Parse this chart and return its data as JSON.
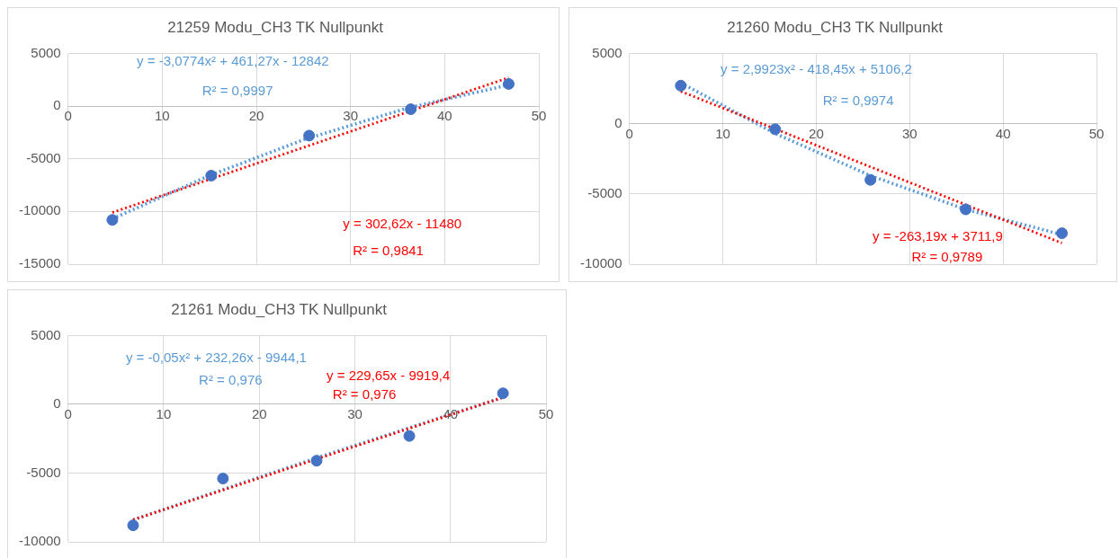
{
  "chart_data": [
    {
      "type": "scatter",
      "title": "21259 Modu_CH3 TK Nullpunkt",
      "xlim": [
        0,
        50
      ],
      "xticks": [
        0,
        10,
        20,
        30,
        40,
        50
      ],
      "ylim": [
        -15000,
        5000
      ],
      "yticks": [
        -15000,
        -10000,
        -5000,
        0,
        5000
      ],
      "grid": true,
      "legend": false,
      "series": [
        {
          "type": "scatter",
          "color": "#4472c4",
          "marker": "circle",
          "x": [
            4.7,
            15.2,
            25.6,
            36.4,
            46.8
          ],
          "values": [
            -10800,
            -6600,
            -2800,
            -300,
            2100
          ]
        },
        {
          "type": "line",
          "color": "#5b9bd5",
          "marker": "none",
          "line_style": "dotted",
          "x": [
            4.7,
            15,
            25,
            36,
            46.8
          ],
          "values": [
            -10700,
            -6600,
            -3200,
            -200,
            2000
          ]
        },
        {
          "type": "line",
          "color": "#ff0000",
          "marker": "none",
          "line_style": "dotted",
          "x": [
            4.7,
            46.8
          ],
          "values": [
            -10100,
            2700
          ]
        }
      ],
      "annotations": [
        "y = -3,0774x² + 461,27x - 12842",
        "R² = 0,9997",
        "y = 302,62x - 11480",
        "R² = 0,9841"
      ]
    },
    {
      "type": "scatter",
      "title": "21260 Modu_CH3 TK Nullpunkt",
      "xlim": [
        0,
        50
      ],
      "xticks": [
        0,
        10,
        20,
        30,
        40,
        50
      ],
      "ylim": [
        -10000,
        5000
      ],
      "yticks": [
        -10000,
        -5000,
        0,
        5000
      ],
      "grid": true,
      "legend": false,
      "series": [
        {
          "type": "scatter",
          "color": "#4472c4",
          "marker": "circle",
          "x": [
            5.5,
            15.6,
            25.8,
            36,
            46.3
          ],
          "values": [
            2700,
            -400,
            -4000,
            -6100,
            -7800
          ]
        },
        {
          "type": "line",
          "color": "#5b9bd5",
          "marker": "none",
          "line_style": "dotted",
          "x": [
            5.5,
            15.6,
            25.8,
            36,
            46.3
          ],
          "values": [
            2900,
            -700,
            -3700,
            -6100,
            -7900
          ]
        },
        {
          "type": "line",
          "color": "#ff0000",
          "marker": "none",
          "line_style": "dotted",
          "x": [
            5.5,
            46.3
          ],
          "values": [
            2300,
            -8500
          ]
        }
      ],
      "annotations": [
        "y = 2,9923x² - 418,45x + 5106,2",
        "R² = 0,9974",
        "y = -263,19x + 3711,9",
        "R² = 0,9789"
      ]
    },
    {
      "type": "scatter",
      "title": "21261 Modu_CH3 TK Nullpunkt",
      "xlim": [
        0,
        50
      ],
      "xticks": [
        0,
        10,
        20,
        30,
        40,
        50
      ],
      "ylim": [
        -10000,
        5000
      ],
      "yticks": [
        -10000,
        -5000,
        0,
        5000
      ],
      "grid": true,
      "legend": false,
      "series": [
        {
          "type": "scatter",
          "color": "#4472c4",
          "marker": "circle",
          "x": [
            6.8,
            16.2,
            26,
            35.7,
            45.5
          ],
          "values": [
            -8800,
            -5400,
            -4100,
            -2300,
            800
          ]
        },
        {
          "type": "line",
          "color": "#5b9bd5",
          "marker": "none",
          "line_style": "dotted",
          "x": [
            6.8,
            26,
            45.5
          ],
          "values": [
            -8400,
            -3900,
            500
          ]
        },
        {
          "type": "line",
          "color": "#ff0000",
          "marker": "none",
          "line_style": "dotted",
          "x": [
            6.8,
            45.5
          ],
          "values": [
            -8400,
            500
          ]
        }
      ],
      "annotations": [
        "y = -0,05x² + 232,26x - 9944,1",
        "R² = 0,976",
        "y = 229,65x - 9919,4",
        "R² = 0,976"
      ]
    }
  ]
}
